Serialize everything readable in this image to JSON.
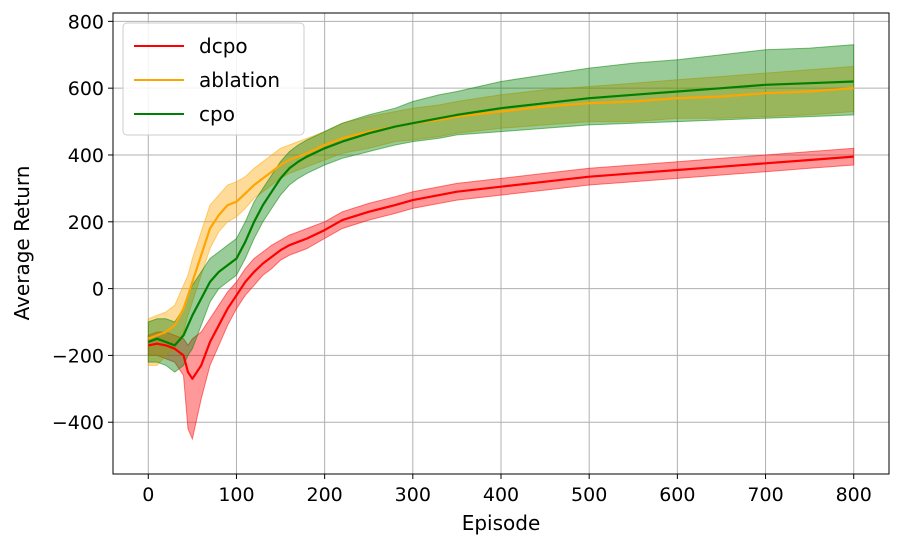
{
  "chart_data": {
    "type": "line",
    "title": "",
    "xlabel": "Episode",
    "ylabel": "Average Return",
    "xlim": [
      -40,
      840
    ],
    "ylim": [
      -555,
      825
    ],
    "xticks": [
      0,
      100,
      200,
      300,
      400,
      500,
      600,
      700,
      800
    ],
    "xtick_labels": [
      "0",
      "100",
      "200",
      "300",
      "400",
      "500",
      "600",
      "700",
      "800"
    ],
    "yticks": [
      -400,
      -200,
      0,
      200,
      400,
      600,
      800
    ],
    "ytick_labels": [
      "−400",
      "−200",
      "0",
      "200",
      "400",
      "600",
      "800"
    ],
    "grid": true,
    "legend_position": "top-left",
    "x": [
      0,
      10,
      20,
      30,
      40,
      45,
      50,
      60,
      70,
      80,
      90,
      100,
      110,
      120,
      130,
      140,
      150,
      160,
      170,
      180,
      200,
      220,
      250,
      280,
      300,
      330,
      350,
      400,
      450,
      500,
      550,
      600,
      650,
      700,
      750,
      800
    ],
    "series": [
      {
        "name": "dcpo",
        "color": "#ff0000",
        "values": [
          -170,
          -165,
          -170,
          -180,
          -200,
          -250,
          -270,
          -230,
          -160,
          -110,
          -60,
          -20,
          20,
          50,
          75,
          95,
          115,
          130,
          140,
          150,
          175,
          205,
          230,
          250,
          265,
          280,
          290,
          305,
          320,
          335,
          345,
          355,
          365,
          375,
          385,
          395
        ],
        "lower": [
          -200,
          -200,
          -210,
          -220,
          -260,
          -420,
          -450,
          -330,
          -230,
          -170,
          -110,
          -60,
          -20,
          10,
          40,
          60,
          85,
          100,
          110,
          120,
          150,
          180,
          205,
          225,
          240,
          255,
          265,
          280,
          295,
          310,
          320,
          330,
          340,
          350,
          360,
          370
        ],
        "upper": [
          -140,
          -130,
          -130,
          -140,
          -150,
          -170,
          -150,
          -130,
          -90,
          -50,
          -10,
          20,
          60,
          90,
          110,
          130,
          145,
          160,
          170,
          180,
          200,
          230,
          255,
          275,
          290,
          305,
          315,
          330,
          345,
          360,
          370,
          380,
          390,
          400,
          410,
          420
        ]
      },
      {
        "name": "ablation",
        "color": "#ffa500",
        "values": [
          -150,
          -140,
          -130,
          -110,
          -60,
          -20,
          20,
          100,
          180,
          220,
          250,
          260,
          285,
          310,
          330,
          350,
          370,
          385,
          395,
          405,
          430,
          450,
          470,
          485,
          495,
          505,
          515,
          530,
          545,
          555,
          560,
          570,
          575,
          585,
          590,
          600
        ],
        "lower": [
          -230,
          -230,
          -200,
          -180,
          -130,
          -80,
          -40,
          40,
          120,
          170,
          200,
          215,
          240,
          270,
          290,
          310,
          330,
          345,
          355,
          365,
          385,
          405,
          420,
          440,
          445,
          455,
          465,
          480,
          490,
          500,
          500,
          510,
          510,
          515,
          520,
          530
        ],
        "upper": [
          -90,
          -80,
          -70,
          -50,
          10,
          40,
          90,
          170,
          250,
          280,
          310,
          320,
          335,
          360,
          380,
          400,
          420,
          430,
          440,
          450,
          470,
          495,
          515,
          530,
          540,
          550,
          560,
          580,
          595,
          605,
          615,
          625,
          635,
          645,
          655,
          665
        ]
      },
      {
        "name": "cpo",
        "color": "#008000",
        "values": [
          -160,
          -150,
          -160,
          -170,
          -140,
          -110,
          -80,
          -30,
          20,
          50,
          70,
          90,
          140,
          200,
          250,
          290,
          330,
          360,
          380,
          395,
          420,
          440,
          465,
          485,
          495,
          510,
          520,
          540,
          555,
          570,
          580,
          590,
          600,
          610,
          615,
          620
        ],
        "lower": [
          -220,
          -220,
          -230,
          -250,
          -230,
          -200,
          -180,
          -110,
          -40,
          0,
          20,
          40,
          90,
          150,
          200,
          240,
          280,
          310,
          330,
          345,
          370,
          390,
          410,
          430,
          440,
          450,
          460,
          470,
          480,
          490,
          495,
          500,
          505,
          510,
          515,
          520
        ],
        "upper": [
          -100,
          -90,
          -90,
          -100,
          -60,
          -20,
          10,
          50,
          90,
          110,
          130,
          150,
          200,
          260,
          300,
          340,
          380,
          410,
          430,
          445,
          470,
          495,
          520,
          540,
          560,
          580,
          590,
          620,
          640,
          660,
          675,
          685,
          700,
          715,
          720,
          730
        ]
      }
    ]
  }
}
